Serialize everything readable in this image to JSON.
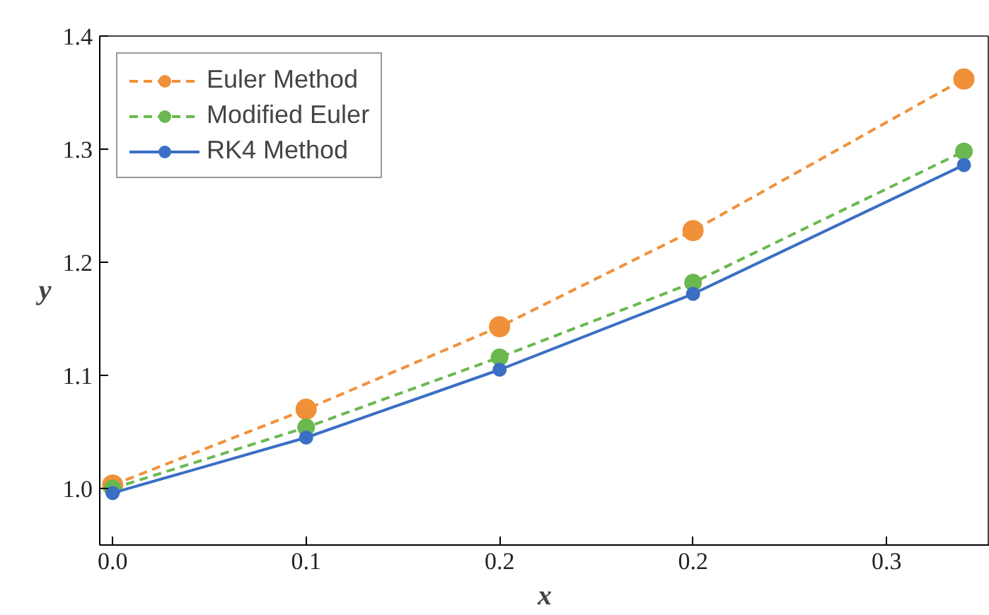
{
  "chart_data": {
    "type": "line",
    "xlabel": "x",
    "ylabel": "y",
    "x": [
      0,
      0.075,
      0.15,
      0.225,
      0.33
    ],
    "xlim": [
      -0.005,
      0.34
    ],
    "ylim": [
      0.95,
      1.4
    ],
    "xticks": [
      {
        "value": 0,
        "label": "0.0"
      },
      {
        "value": 0.075,
        "label": "0.1"
      },
      {
        "value": 0.15,
        "label": "0.2"
      },
      {
        "value": 0.225,
        "label": "0.2"
      },
      {
        "value": 0.3,
        "label": "0.3"
      }
    ],
    "yticks": [
      {
        "value": 1.0,
        "label": "1.0"
      },
      1.1,
      1.2,
      1.3,
      1.4
    ],
    "grid": false,
    "legend": "top left",
    "marker": "circle",
    "series": [
      {
        "name": "Euler Method",
        "color": "#f0913a",
        "line_style": "dashed",
        "values": [
          1.003,
          1.07,
          1.143,
          1.228,
          1.362
        ]
      },
      {
        "name": "Modified Euler",
        "color": "#6ab84f",
        "line_style": "dashed",
        "values": [
          1.0,
          1.054,
          1.116,
          1.182,
          1.298
        ]
      },
      {
        "name": "RK4 Method",
        "color": "#3a6fc4",
        "line_style": "solid",
        "values": [
          0.996,
          1.045,
          1.105,
          1.172,
          1.286
        ]
      }
    ]
  }
}
